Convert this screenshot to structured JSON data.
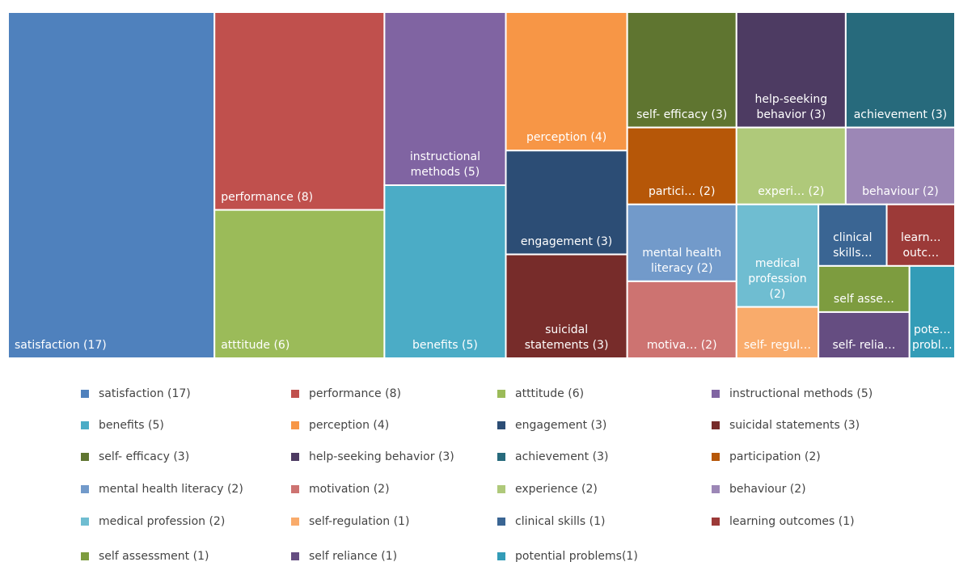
{
  "chart_data": {
    "type": "treemap",
    "categories": [
      "satisfaction (17)",
      "performance (8)",
      "atttitude (6)",
      "instructional methods (5)",
      "benefits (5)",
      "perception (4)",
      "engagement (3)",
      "suicidal statements (3)",
      "self- efficacy (3)",
      "help-seeking behavior (3)",
      "achievement (3)",
      "participation (2)",
      "mental health literacy (2)",
      "motivation (2)",
      "experience (2)",
      "behaviour (2)",
      "medical profession (2)",
      "self-regulation (1)",
      "clinical skills (1)",
      "learning outcomes (1)",
      "self assessment (1)",
      "self reliance (1)",
      "potential problems(1)"
    ],
    "tile_labels": [
      "satisfaction (17)",
      "performance (8)",
      "atttitude (6)",
      "instructional methods (5)",
      "benefits (5)",
      "perception (4)",
      "engagement (3)",
      "suicidal statements (3)",
      "self- efficacy (3)",
      "help-seeking behavior (3)",
      "achievement (3)",
      "partici… (2)",
      "mental health literacy (2)",
      "motiva… (2)",
      "experi… (2)",
      "behaviour (2)",
      "medical profession (2)",
      "self- regul…",
      "clinical skills…",
      "learn… outc…",
      "self asse…",
      "self- relia…",
      "pote… probl…"
    ],
    "values": [
      17,
      8,
      6,
      5,
      5,
      4,
      3,
      3,
      3,
      3,
      3,
      2,
      2,
      2,
      2,
      2,
      2,
      1,
      1,
      1,
      1,
      1,
      1
    ],
    "colors": [
      "#4f81bd",
      "#c0504d",
      "#9bbb59",
      "#8064a2",
      "#4bacc6",
      "#f79646",
      "#2c4d75",
      "#772c2a",
      "#5f7530",
      "#4d3b62",
      "#276a7c",
      "#b65708",
      "#729aca",
      "#cd7371",
      "#afc97a",
      "#9c87b6",
      "#6fbdd1",
      "#f9ab6b",
      "#3a6593",
      "#9c3a38",
      "#7d9c3f",
      "#654d81",
      "#339cb7"
    ]
  }
}
